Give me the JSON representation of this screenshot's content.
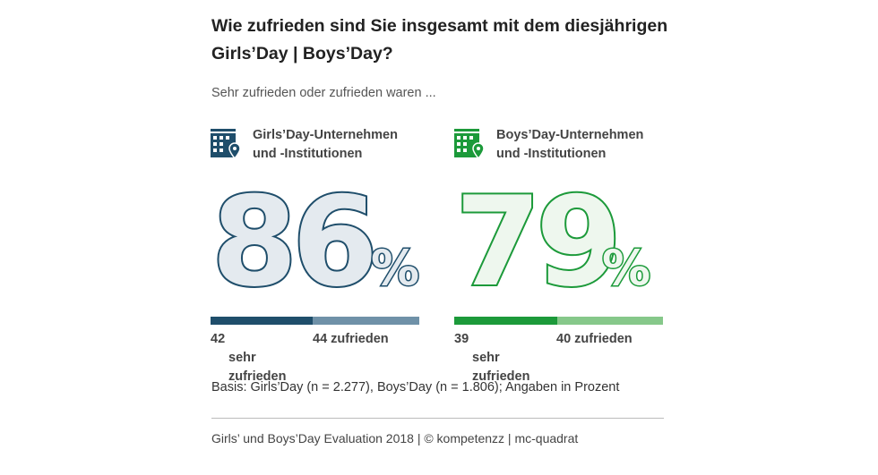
{
  "title": "Wie zufrieden sind Sie insgesamt mit dem diesjährigen Girls’Day | Boys’Day?",
  "subtitle": "Sehr zufrieden oder zufrieden waren ...",
  "colors": {
    "girls_dark": "#1f4e6b",
    "girls_light": "#6f91a8",
    "girls_fill": "#e4eaef",
    "boys_dark": "#1c9a3a",
    "boys_light": "#86c88a",
    "boys_fill": "#eef7ee"
  },
  "panels": [
    {
      "icon": "building-location-icon",
      "label_line1": "Girls’Day-Unternehmen",
      "label_line2": "und -Institutionen",
      "total": "86",
      "percent": "%",
      "seg1_num": "42",
      "seg1_txt": "sehr zufrieden",
      "seg2_num": "44",
      "seg2_txt": "zufrieden"
    },
    {
      "icon": "building-location-icon",
      "label_line1": "Boys’Day-Unternehmen",
      "label_line2": "und -Institutionen",
      "total": "79",
      "percent": "%",
      "seg1_num": "39",
      "seg1_txt": "sehr zufrieden",
      "seg2_num": "40",
      "seg2_txt": "zufrieden"
    }
  ],
  "chart_data": {
    "type": "bar",
    "orientation": "horizontal-stacked",
    "categories": [
      "Girls’Day-Unternehmen und -Institutionen",
      "Boys’Day-Unternehmen und -Institutionen"
    ],
    "series": [
      {
        "name": "sehr zufrieden",
        "values": [
          42,
          39
        ]
      },
      {
        "name": "zufrieden",
        "values": [
          44,
          40
        ]
      }
    ],
    "totals": [
      86,
      79
    ],
    "unit": "%",
    "title": "Wie zufrieden sind Sie insgesamt mit dem diesjährigen Girls’Day | Boys’Day?",
    "subtitle": "Sehr zufrieden oder zufrieden waren ...",
    "legend": "none",
    "grid": false
  },
  "basis": "Basis: Girls’Day (n = 2.277), Boys’Day (n = 1.806); Angaben in Prozent",
  "footer": "Girls’ und Boys’Day Evaluation 2018 | © kompetenzz | mc-quadrat"
}
